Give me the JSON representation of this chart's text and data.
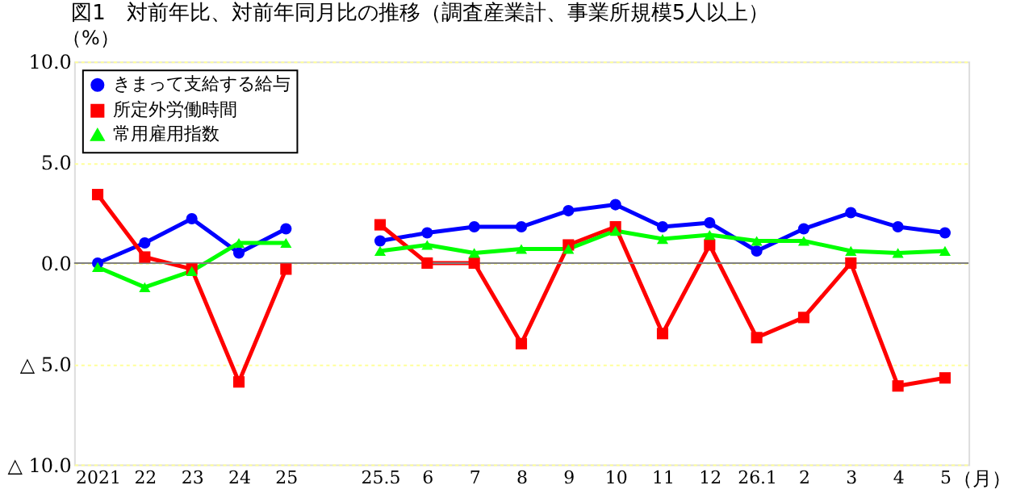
{
  "chart_data": {
    "type": "line",
    "title": "図1　対前年比、対前年同月比の推移（調査産業計、事業所規模5人以上）",
    "ylabel": "（%）",
    "xlabel": "（月）",
    "categories": [
      "2021",
      "22",
      "23",
      "24",
      "25",
      null,
      "25.5",
      "6",
      "7",
      "8",
      "9",
      "10",
      "11",
      "12",
      "26.1",
      "2",
      "3",
      "4",
      "5"
    ],
    "series": [
      {
        "name": "きまって支給する給与",
        "color": "#0000ff",
        "marker": "circle",
        "values": [
          0.0,
          1.0,
          2.2,
          0.5,
          1.7,
          null,
          1.1,
          1.5,
          1.8,
          1.8,
          2.6,
          2.9,
          1.8,
          2.0,
          0.6,
          1.7,
          2.5,
          1.8,
          1.5
        ]
      },
      {
        "name": "所定外労働時間",
        "color": "#ff0000",
        "marker": "square",
        "values": [
          3.4,
          0.3,
          -0.3,
          -5.9,
          -0.3,
          null,
          1.9,
          0.0,
          0.0,
          -4.0,
          0.9,
          1.8,
          -3.5,
          0.9,
          -3.7,
          -2.7,
          0.0,
          -6.1,
          -5.7
        ]
      },
      {
        "name": "常用雇用指数",
        "color": "#00ff00",
        "marker": "triangle",
        "values": [
          -0.2,
          -1.2,
          -0.4,
          1.0,
          1.0,
          null,
          0.6,
          0.9,
          0.5,
          0.7,
          0.7,
          1.6,
          1.2,
          1.4,
          1.1,
          1.1,
          0.6,
          0.5,
          0.6
        ]
      }
    ],
    "ylim": [
      -10,
      10
    ],
    "yticks": [
      {
        "value": -10,
        "label": "△ 10.0"
      },
      {
        "value": -5,
        "label": "△ 5.0"
      },
      {
        "value": 0,
        "label": "0.0"
      },
      {
        "value": 5,
        "label": "5.0"
      },
      {
        "value": 10,
        "label": "10.0"
      }
    ],
    "grid": "y",
    "ref_lines": [
      {
        "axis": "y",
        "value": 0,
        "color": "#808080"
      }
    ],
    "legend": "top left",
    "line_style": "solid"
  }
}
